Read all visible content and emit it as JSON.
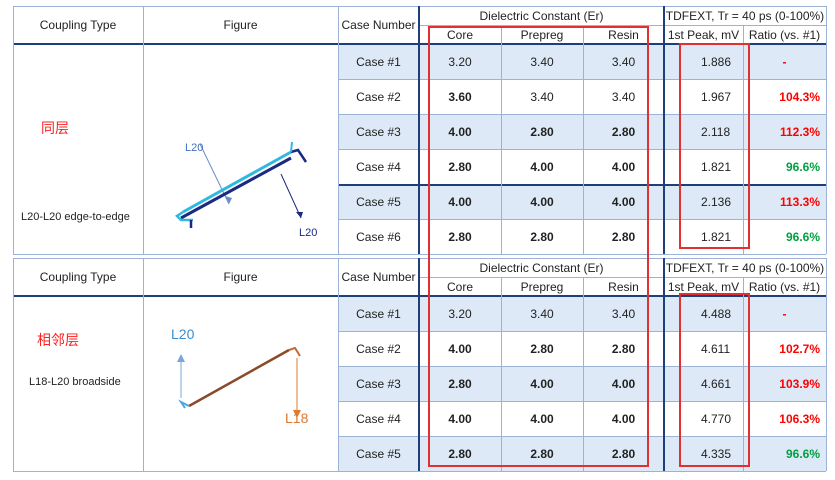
{
  "headers": {
    "coupling_type": "Coupling Type",
    "figure": "Figure",
    "case_number": "Case Number",
    "dielectric": "Dielectric Constant (Er)",
    "core": "Core",
    "prepreg": "Prepreg",
    "resin": "Resin",
    "tdfext": "TDFEXT, Tr = 40 ps (0-100%)",
    "peak": "1st Peak, mV",
    "ratio": "Ratio (vs. #1)"
  },
  "table1": {
    "label_cn": "同层",
    "label_desc": "L20-L20 edge-to-edge",
    "fig_label_a": "L20",
    "fig_label_b": "L20",
    "rows": [
      {
        "case": "Case #1",
        "core": "3.20",
        "prepreg": "3.40",
        "resin": "3.40",
        "peak": "1.886",
        "ratio": "-"
      },
      {
        "case": "Case #2",
        "core": "3.60",
        "prepreg": "3.40",
        "resin": "3.40",
        "peak": "1.967",
        "ratio": "104.3%"
      },
      {
        "case": "Case #3",
        "core": "4.00",
        "prepreg": "2.80",
        "resin": "2.80",
        "peak": "2.118",
        "ratio": "112.3%"
      },
      {
        "case": "Case #4",
        "core": "2.80",
        "prepreg": "4.00",
        "resin": "4.00",
        "peak": "1.821",
        "ratio": "96.6%"
      },
      {
        "case": "Case #5",
        "core": "4.00",
        "prepreg": "4.00",
        "resin": "4.00",
        "peak": "2.136",
        "ratio": "113.3%"
      },
      {
        "case": "Case #6",
        "core": "2.80",
        "prepreg": "2.80",
        "resin": "2.80",
        "peak": "1.821",
        "ratio": "96.6%"
      }
    ]
  },
  "table2": {
    "label_cn": "相邻层",
    "label_desc": "L18-L20 broadside",
    "fig_label_a": "L20",
    "fig_label_b": "L18",
    "rows": [
      {
        "case": "Case #1",
        "core": "3.20",
        "prepreg": "3.40",
        "resin": "3.40",
        "peak": "4.488",
        "ratio": "-"
      },
      {
        "case": "Case #2",
        "core": "4.00",
        "prepreg": "2.80",
        "resin": "2.80",
        "peak": "4.611",
        "ratio": "102.7%"
      },
      {
        "case": "Case #3",
        "core": "2.80",
        "prepreg": "4.00",
        "resin": "4.00",
        "peak": "4.661",
        "ratio": "103.9%"
      },
      {
        "case": "Case #4",
        "core": "4.00",
        "prepreg": "4.00",
        "resin": "4.00",
        "peak": "4.770",
        "ratio": "106.3%"
      },
      {
        "case": "Case #5",
        "core": "2.80",
        "prepreg": "2.80",
        "resin": "2.80",
        "peak": "4.335",
        "ratio": "96.6%"
      }
    ]
  },
  "colors": {
    "row_fill": "#dde9f6",
    "highlight": "#e03030",
    "ratio_up": "#ff0000",
    "ratio_down": "#00a040"
  }
}
